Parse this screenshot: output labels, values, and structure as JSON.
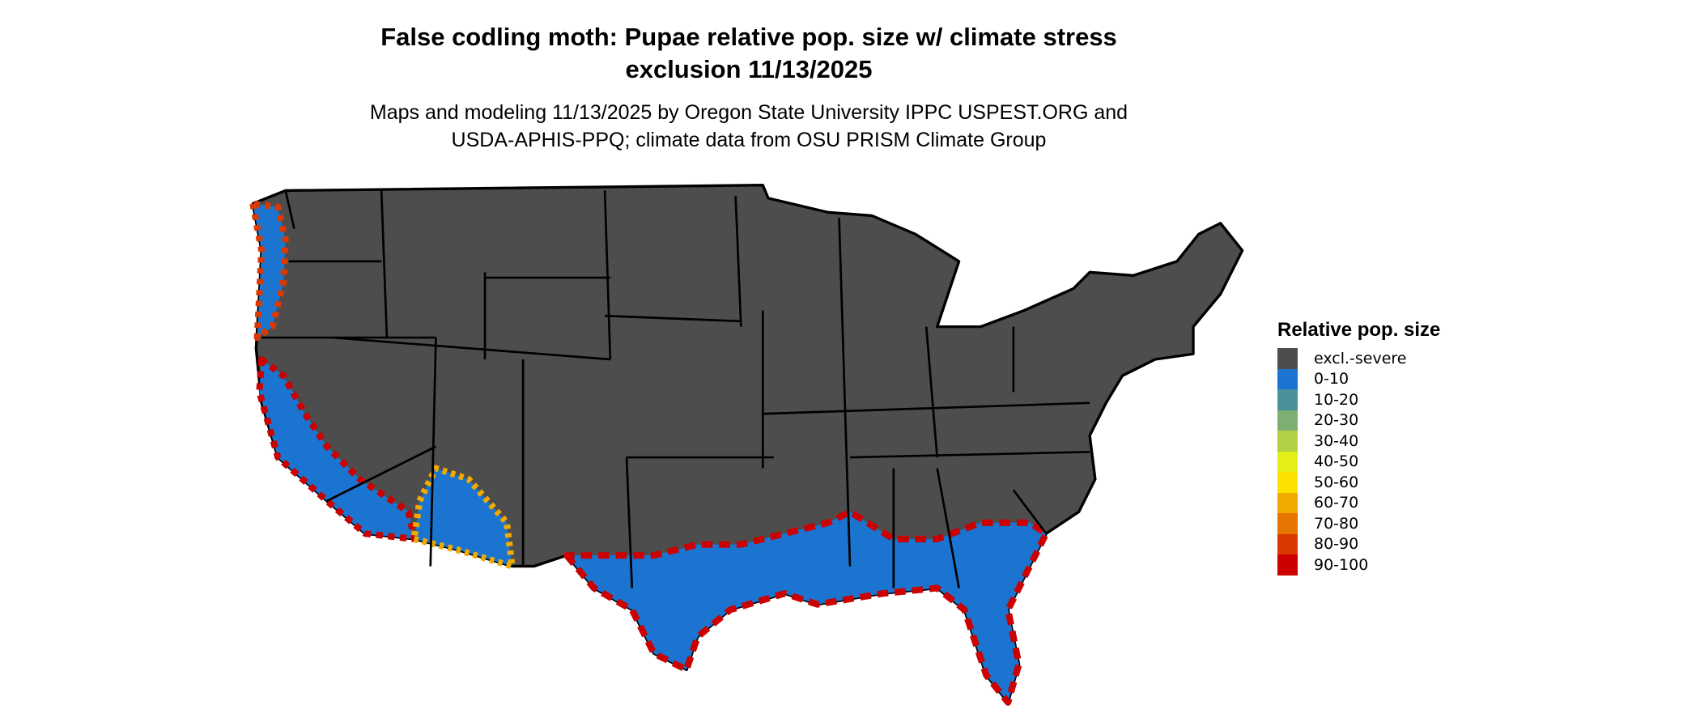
{
  "title": "False codling moth: Pupae relative pop. size w/ climate stress",
  "title_line2": "exclusion 11/13/2025",
  "subtitle": "Maps and modeling 11/13/2025 by Oregon State University IPPC USPEST.ORG and",
  "subtitle_line2": "USDA-APHIS-PPQ; climate data from OSU PRISM Climate Group",
  "legend": {
    "title": "Relative pop. size",
    "items": [
      {
        "label": "excl.-severe",
        "color": "#4d4d4d"
      },
      {
        "label": "0-10",
        "color": "#1a74d0"
      },
      {
        "label": "10-20",
        "color": "#4a919c"
      },
      {
        "label": "20-30",
        "color": "#7dae72"
      },
      {
        "label": "30-40",
        "color": "#b2d146"
      },
      {
        "label": "40-50",
        "color": "#e4ef17"
      },
      {
        "label": "50-60",
        "color": "#fbe200"
      },
      {
        "label": "60-70",
        "color": "#f0aa00"
      },
      {
        "label": "70-80",
        "color": "#e57400"
      },
      {
        "label": "80-90",
        "color": "#dc3900"
      },
      {
        "label": "90-100",
        "color": "#cc0000"
      }
    ]
  }
}
